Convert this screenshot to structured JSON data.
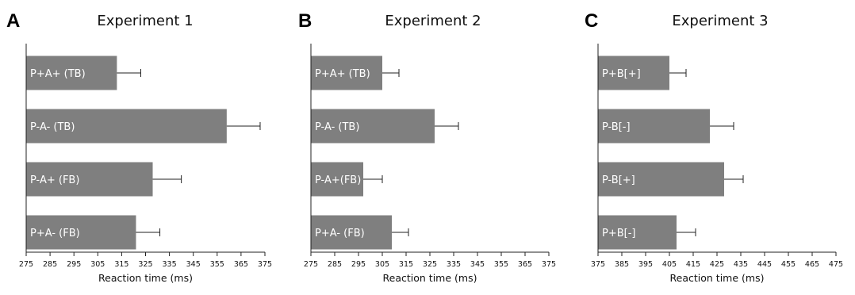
{
  "chart_data": [
    {
      "type": "bar",
      "orientation": "horizontal",
      "panel_label": "A",
      "title": "Experiment 1",
      "xlabel": "Reaction time (ms)",
      "ylabel": "",
      "xlim": [
        275,
        375
      ],
      "x_ticks": [
        275,
        285,
        295,
        305,
        315,
        325,
        335,
        345,
        355,
        365,
        375
      ],
      "categories": [
        "P+A+ (TB)",
        "P-A- (TB)",
        "P-A+ (FB)",
        "P+A- (FB)"
      ],
      "values": [
        313,
        359,
        328,
        321
      ],
      "errors": [
        10,
        14,
        12,
        10
      ],
      "error_bars": "one-sided",
      "grid": false,
      "bar_color": "#7f7f7f"
    },
    {
      "type": "bar",
      "orientation": "horizontal",
      "panel_label": "B",
      "title": "Experiment 2",
      "xlabel": "Reaction time (ms)",
      "ylabel": "",
      "xlim": [
        275,
        375
      ],
      "x_ticks": [
        275,
        285,
        295,
        305,
        315,
        325,
        335,
        345,
        355,
        365,
        375
      ],
      "categories": [
        "P+A+ (TB)",
        "P-A- (TB)",
        "P-A+(FB)",
        "P+A- (FB)"
      ],
      "values": [
        305,
        327,
        297,
        309
      ],
      "errors": [
        7,
        10,
        8,
        7
      ],
      "error_bars": "one-sided",
      "grid": false,
      "bar_color": "#7f7f7f"
    },
    {
      "type": "bar",
      "orientation": "horizontal",
      "panel_label": "C",
      "title": "Experiment 3",
      "xlabel": "Reaction time (ms)",
      "ylabel": "",
      "xlim": [
        375,
        475
      ],
      "x_ticks": [
        375,
        385,
        395,
        405,
        415,
        425,
        435,
        445,
        455,
        465,
        475
      ],
      "categories": [
        "P+B[+]",
        "P-B[-]",
        "P-B[+]",
        "P+B[-]"
      ],
      "values": [
        405,
        422,
        428,
        408
      ],
      "errors": [
        7,
        10,
        8,
        8
      ],
      "error_bars": "one-sided",
      "grid": false,
      "bar_color": "#7f7f7f"
    }
  ]
}
